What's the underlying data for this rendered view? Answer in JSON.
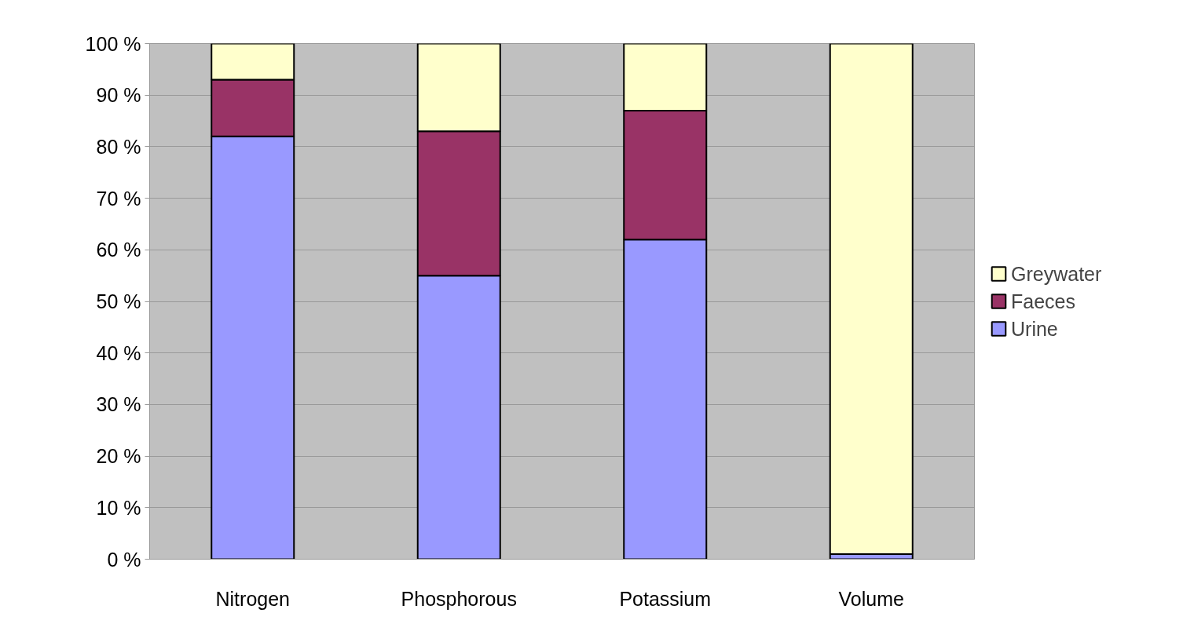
{
  "chart_data": {
    "type": "bar",
    "stacked": true,
    "categories": [
      "Nitrogen",
      "Phosphorous",
      "Potassium",
      "Volume"
    ],
    "series": [
      {
        "name": "Urine",
        "color": "#9999ff",
        "values": [
          82,
          55,
          62,
          1
        ]
      },
      {
        "name": "Faeces",
        "color": "#993366",
        "values": [
          11,
          28,
          25,
          0
        ]
      },
      {
        "name": "Greywater",
        "color": "#ffffcc",
        "values": [
          7,
          17,
          13,
          99
        ]
      }
    ],
    "ylim": [
      0,
      100
    ],
    "yticks": [
      {
        "value": 0,
        "label": "0 %"
      },
      {
        "value": 10,
        "label": "10 %"
      },
      {
        "value": 20,
        "label": "20 %"
      },
      {
        "value": 30,
        "label": "30 %"
      },
      {
        "value": 40,
        "label": "40 %"
      },
      {
        "value": 50,
        "label": "50 %"
      },
      {
        "value": 60,
        "label": "60 %"
      },
      {
        "value": 70,
        "label": "70 %"
      },
      {
        "value": 80,
        "label": "80 %"
      },
      {
        "value": 90,
        "label": "90 %"
      },
      {
        "value": 100,
        "label": "100 %"
      }
    ],
    "grid": "y",
    "legend": "right"
  }
}
